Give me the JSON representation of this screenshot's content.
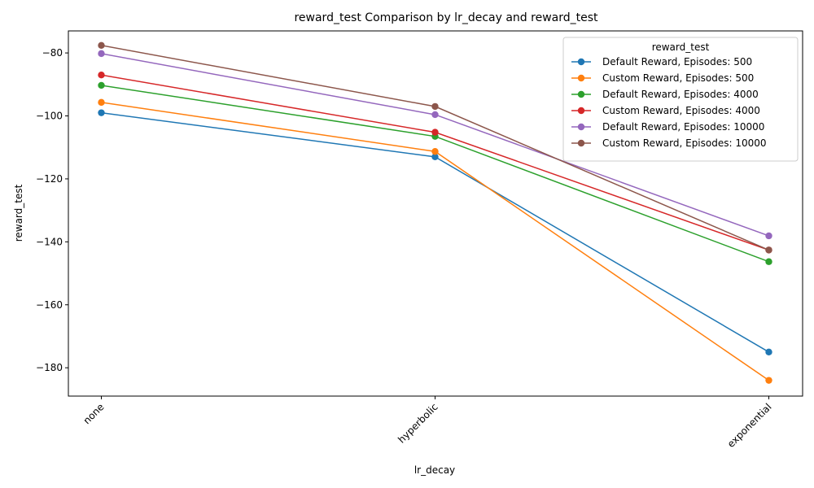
{
  "chart_data": {
    "type": "line",
    "title": "reward_test Comparison by lr_decay and reward_test",
    "xlabel": "lr_decay",
    "ylabel": "reward_test",
    "categories": [
      "none",
      "hyperbolic",
      "exponential"
    ],
    "ylim": [
      -189,
      -73
    ],
    "yticks": [
      -180,
      -160,
      -140,
      -120,
      -100,
      -80
    ],
    "grid": false,
    "legend": {
      "title": "reward_test",
      "placement": "top-right"
    },
    "series": [
      {
        "name": "Default Reward, Episodes: 500",
        "color": "#1f77b4",
        "values": [
          -99,
          -113,
          -175
        ]
      },
      {
        "name": "Custom Reward, Episodes: 500",
        "color": "#ff7f0e",
        "values": [
          -95.7,
          -111.3,
          -184
        ]
      },
      {
        "name": "Default Reward, Episodes: 4000",
        "color": "#2ca02c",
        "values": [
          -90.3,
          -106.5,
          -146.3
        ]
      },
      {
        "name": "Custom Reward, Episodes: 4000",
        "color": "#d62728",
        "values": [
          -87,
          -105.2,
          -142.6
        ]
      },
      {
        "name": "Default Reward, Episodes: 10000",
        "color": "#9467bd",
        "values": [
          -80.2,
          -99.6,
          -138.1
        ]
      },
      {
        "name": "Custom Reward, Episodes: 10000",
        "color": "#8c564b",
        "values": [
          -77.6,
          -97,
          -142.6
        ]
      }
    ]
  }
}
